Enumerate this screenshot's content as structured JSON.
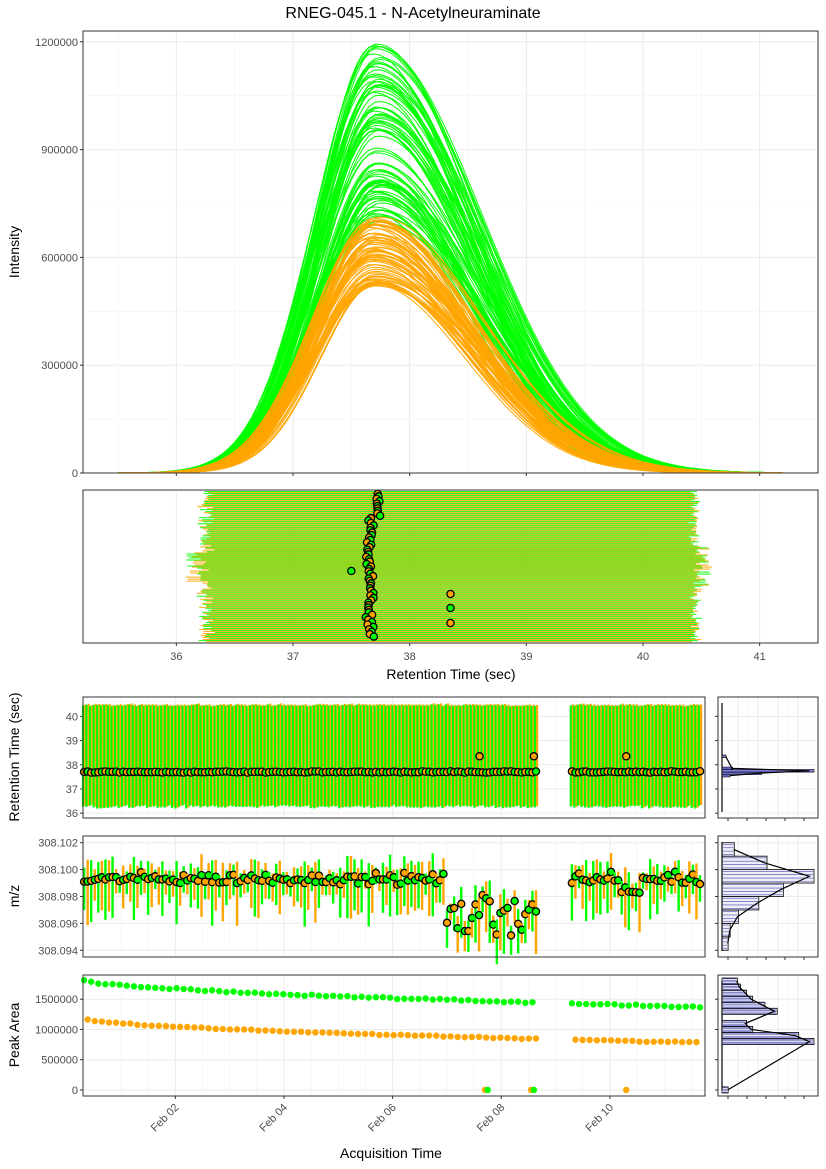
{
  "chart_data": [
    {
      "type": "line",
      "panel": "chromatograms",
      "title": "RNEG-045.1 - N-Acetylneuraminate",
      "xlabel": "",
      "ylabel": "Intensity",
      "xlim": [
        35.2,
        41.5
      ],
      "ylim": [
        0,
        1230000
      ],
      "yticks": [
        0,
        300000,
        600000,
        900000,
        1200000
      ],
      "ytick_labels": [
        "0",
        "300000",
        "600000",
        "900000",
        "1200000"
      ],
      "series": [
        {
          "color": "#00ff00",
          "count": 90,
          "apex_rt": 37.72,
          "apex_min": 700000,
          "apex_max": 1205000,
          "start_rt": 35.5,
          "end_rt": 41.2
        },
        {
          "color": "#ffa500",
          "count": 70,
          "apex_rt": 37.7,
          "apex_min": 520000,
          "apex_max": 720000,
          "start_rt": 35.5,
          "end_rt": 41.2
        }
      ]
    },
    {
      "type": "scatter",
      "panel": "rt-ranges",
      "xlabel": "Retention Time (sec)",
      "xlim": [
        35.2,
        41.5
      ],
      "xticks": [
        36,
        37,
        38,
        39,
        40,
        41
      ],
      "xtick_labels": [
        "36",
        "37",
        "38",
        "39",
        "40",
        "41"
      ],
      "green_color": "#00ff00",
      "orange_color": "#ffa500",
      "range_start_mean": 36.25,
      "range_end_mean": 40.45,
      "apex_mean": 37.68,
      "outliers": [
        {
          "color": "#00ff00",
          "rt": 37.5
        },
        {
          "color": "#ffa500",
          "rt": 38.35
        },
        {
          "color": "#00ff00",
          "rt": 38.35
        },
        {
          "color": "#ffa500",
          "rt": 38.35
        }
      ]
    },
    {
      "type": "scatter",
      "panel": "rt-vs-time",
      "xlabel": "",
      "ylabel": "Retention Time (sec)",
      "ylim": [
        35.8,
        40.8
      ],
      "yticks": [
        36,
        37,
        38,
        39,
        40
      ],
      "ytick_labels": [
        "36",
        "37",
        "38",
        "39",
        "40"
      ],
      "apex_mean": 37.7,
      "range_low": 36.25,
      "range_high": 40.45,
      "outliers": [
        {
          "day": 7.6,
          "rt": 38.35
        },
        {
          "day": 8.6,
          "rt": 38.35
        },
        {
          "day": 10.3,
          "rt": 38.35
        }
      ]
    },
    {
      "type": "scatter",
      "panel": "mz-vs-time",
      "ylabel": "m/z",
      "ylim": [
        308.0935,
        308.1025
      ],
      "yticks": [
        308.094,
        308.096,
        308.098,
        308.1,
        308.102
      ],
      "ytick_labels": [
        "308.094",
        "308.096",
        "308.098",
        "308.100",
        "308.102"
      ],
      "mz_mean": 308.0993
    },
    {
      "type": "scatter",
      "panel": "area-vs-time",
      "xlabel": "Acquisition Time",
      "ylabel": "Peak Area",
      "ylim": [
        -100000,
        1900000
      ],
      "yticks": [
        0,
        500000,
        1000000,
        1500000
      ],
      "ytick_labels": [
        "0",
        "500000",
        "1000000",
        "1500000"
      ],
      "xlim_days": [
        0.3,
        11.75
      ],
      "xticks_days": [
        2,
        4,
        6,
        8,
        10
      ],
      "xtick_labels": [
        "Feb 02",
        "Feb 04",
        "Feb 06",
        "Feb 08",
        "Feb 10"
      ],
      "green_start": 1830000,
      "green_end": 1370000,
      "orange_start": 1190000,
      "orange_end": 780000,
      "zero_points": [
        {
          "color": "#ffa500",
          "day": 7.7
        },
        {
          "color": "#00ff00",
          "day": 7.75
        },
        {
          "color": "#ffa500",
          "day": 8.55
        },
        {
          "color": "#00ff00",
          "day": 8.6
        },
        {
          "color": "#ffa500",
          "day": 10.3
        }
      ]
    },
    {
      "type": "bar",
      "panel": "rt-histogram",
      "orientation": "horizontal",
      "bins_center": [
        37.55,
        37.65,
        37.75,
        37.85,
        38.35
      ],
      "bins_count": [
        6,
        30,
        70,
        8,
        3
      ]
    },
    {
      "type": "bar",
      "panel": "mz-histogram",
      "orientation": "horizontal",
      "bins_center": [
        308.0945,
        308.0955,
        308.0965,
        308.0975,
        308.0985,
        308.0995,
        308.1005,
        308.1015
      ],
      "bins_count": [
        3,
        4,
        8,
        18,
        30,
        45,
        22,
        6
      ]
    },
    {
      "type": "bar",
      "panel": "area-histogram",
      "orientation": "horizontal",
      "bins_center": [
        0,
        800000,
        900000,
        1000000,
        1100000,
        1300000,
        1400000,
        1500000,
        1600000,
        1700000,
        1800000
      ],
      "bins_count": [
        2,
        30,
        25,
        10,
        8,
        18,
        14,
        10,
        8,
        6,
        5
      ]
    }
  ]
}
